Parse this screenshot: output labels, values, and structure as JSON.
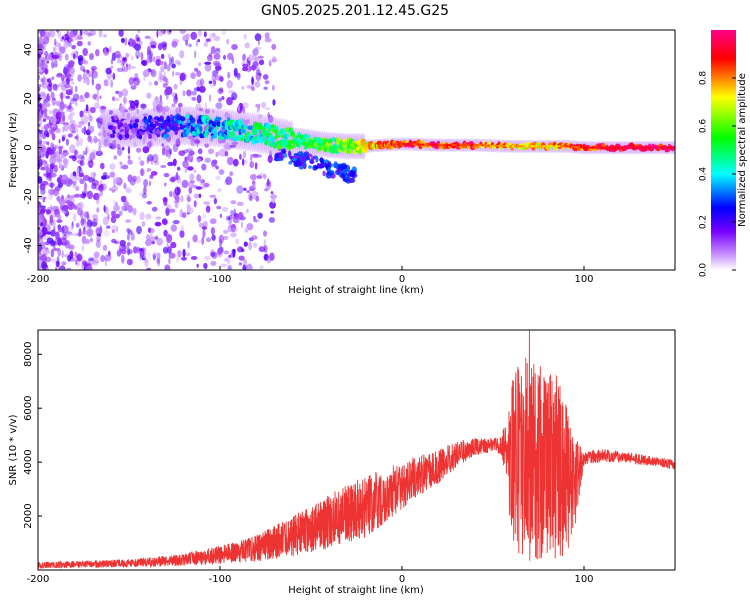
{
  "title": "GN05.2025.201.12.45.G25",
  "chart_data": [
    {
      "type": "heatmap",
      "xlabel": "Height of straight line (km)",
      "ylabel": "Frequency (Hz)",
      "xlim": [
        -200,
        150
      ],
      "ylim": [
        -50,
        48
      ],
      "xticks": [
        -200,
        -100,
        0,
        100
      ],
      "yticks": [
        -40,
        -20,
        0,
        20,
        40
      ],
      "ridge": {
        "x": [
          -160,
          -140,
          -120,
          -100,
          -80,
          -60,
          -40,
          -30,
          -20,
          -10,
          0,
          20,
          40,
          60,
          80,
          90,
          100,
          120,
          150
        ],
        "y": [
          8,
          8,
          9,
          8,
          6,
          3,
          1,
          0.5,
          0.5,
          1,
          1.5,
          1,
          1,
          0.5,
          0.5,
          0.5,
          0,
          0,
          0
        ],
        "amplitude": [
          0.12,
          0.18,
          0.3,
          0.38,
          0.45,
          0.5,
          0.55,
          0.6,
          0.7,
          0.8,
          0.85,
          0.88,
          0.85,
          0.78,
          0.72,
          0.8,
          0.88,
          0.92,
          0.95
        ]
      },
      "colorbar": {
        "label": "Normalized spectral amplitude",
        "range": [
          0,
          1
        ],
        "ticks": [
          0.0,
          0.2,
          0.4,
          0.6,
          0.8
        ],
        "colors": [
          "#ffffff",
          "#cc99ff",
          "#7700ff",
          "#0000ff",
          "#00ffff",
          "#00ff00",
          "#ffff00",
          "#ff0000",
          "#ff0088"
        ]
      }
    },
    {
      "type": "line",
      "xlabel": "Height of straight line (km)",
      "ylabel": "SNR (10 * v/v)",
      "xlim": [
        -200,
        150
      ],
      "ylim": [
        0,
        8900
      ],
      "xticks": [
        -200,
        -100,
        0,
        100
      ],
      "yticks": [
        2000,
        4000,
        6000,
        8000
      ],
      "color": "#ee3333",
      "envelope": {
        "x": [
          -200,
          -150,
          -120,
          -100,
          -80,
          -60,
          -40,
          -20,
          0,
          10,
          20,
          30,
          40,
          50,
          55,
          60,
          65,
          70,
          75,
          80,
          85,
          90,
          95,
          100,
          110,
          120,
          130,
          140,
          150
        ],
        "low": [
          50,
          100,
          150,
          200,
          300,
          500,
          800,
          1200,
          2200,
          2800,
          3200,
          3800,
          4200,
          4400,
          4200,
          1200,
          500,
          200,
          400,
          300,
          400,
          500,
          1500,
          3900,
          4000,
          4000,
          3900,
          3850,
          3700
        ],
        "high": [
          300,
          400,
          600,
          900,
          1300,
          2000,
          2800,
          3500,
          4000,
          4300,
          4500,
          4800,
          4900,
          4900,
          5000,
          7000,
          8400,
          8900,
          7500,
          8200,
          7200,
          6500,
          5000,
          4400,
          4500,
          4400,
          4300,
          4200,
          4100
        ]
      }
    }
  ]
}
